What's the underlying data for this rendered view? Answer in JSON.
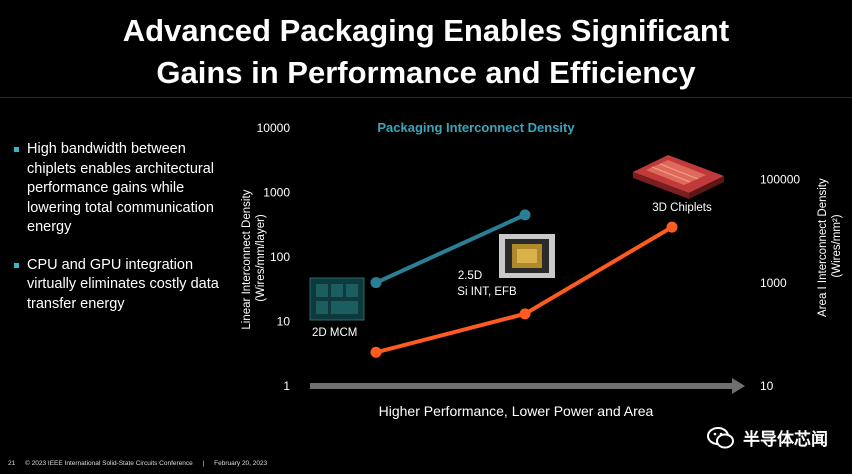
{
  "slide": {
    "title_line1": "Advanced Packaging Enables Significant",
    "title_line2": "Gains in Performance and Efficiency",
    "bullets": [
      "High bandwidth between chiplets enables architectural performance gains while lowering total communication energy",
      "CPU and GPU integration virtually eliminates costly data transfer energy"
    ],
    "footer": {
      "page_number": "21",
      "copyright": "© 2023 IEEE International Solid-State Circuits Conference",
      "separator": "|",
      "date": "February 20, 2023"
    },
    "watermark": "半导体芯闻"
  },
  "chart_data": {
    "type": "line",
    "title": "Packaging Interconnect Density",
    "xlabel": "Higher Performance, Lower Power and Area",
    "ylabel_left": "Linear Interconnect Density (Wires/mm/layer)",
    "ylabel_right": "Area I Interconnect Density (Wires/mm²)",
    "y_left_scale": "log",
    "y_left_ticks": [
      "10000",
      "1000",
      "100",
      "10",
      "1"
    ],
    "y_left_range": [
      1,
      10000
    ],
    "y_right_scale": "log",
    "y_right_ticks": [
      "100000",
      "1000",
      "10"
    ],
    "y_right_range": [
      10,
      1000000
    ],
    "categories": [
      "2D MCM",
      "2.5D Si INT, EFB",
      "3D Chiplets"
    ],
    "category_labels": [
      "2D MCM",
      "2.5D",
      "Si INT, EFB",
      "3D Chiplets"
    ],
    "series": [
      {
        "axis": "left",
        "color": "#2a7f95",
        "points": [
          [
            1,
            40
          ],
          [
            2,
            450
          ]
        ]
      },
      {
        "axis": "right",
        "color": "#ff5a1f",
        "points": [
          [
            1,
            45
          ],
          [
            2,
            250
          ],
          [
            3,
            12000
          ]
        ]
      }
    ]
  }
}
